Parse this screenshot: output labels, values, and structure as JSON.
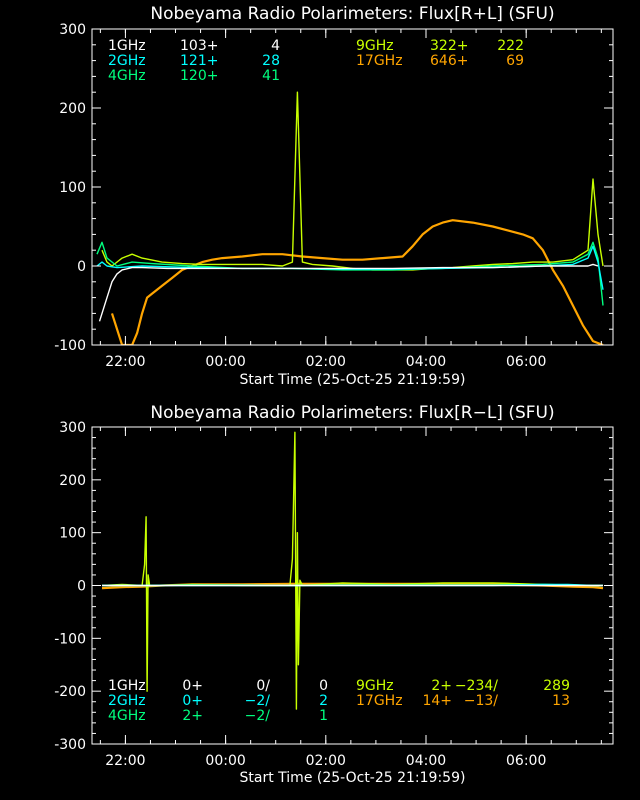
{
  "colors": {
    "1GHz": "#ffffff",
    "2GHz": "#00ffff",
    "4GHz": "#00ff7f",
    "9GHz": "#c8ff00",
    "17GHz": "#ffa500",
    "axis": "#ffffff",
    "background": "#000000"
  },
  "chart_data": [
    {
      "type": "line",
      "title": "Nobeyama Radio Polarimeters: Flux[R+L] (SFU)",
      "xlabel": "Start Time (25-Oct-25 21:19:59)",
      "ylabel": "",
      "x_unit": "hours since 21:19:59",
      "xlim": [
        0,
        10.4
      ],
      "ylim": [
        -100,
        300
      ],
      "x_ticks": [
        {
          "value": 0.667,
          "label": "22:00"
        },
        {
          "value": 2.667,
          "label": "00:00"
        },
        {
          "value": 4.667,
          "label": "02:00"
        },
        {
          "value": 6.667,
          "label": "04:00"
        },
        {
          "value": 8.667,
          "label": "06:00"
        }
      ],
      "y_ticks": [
        -100,
        0,
        100,
        200,
        300
      ],
      "legend": [
        {
          "freq": "1GHz",
          "base": "103+",
          "peak": "4"
        },
        {
          "freq": "2GHz",
          "base": "121+",
          "peak": "28"
        },
        {
          "freq": "4GHz",
          "base": "120+",
          "peak": "41"
        },
        {
          "freq": "9GHz",
          "base": "322+",
          "peak": "222"
        },
        {
          "freq": "17GHz",
          "base": "646+",
          "peak": "69"
        }
      ],
      "series": [
        {
          "name": "17GHz",
          "x": [
            0.4,
            0.6,
            0.8,
            0.9,
            1.0,
            1.1,
            1.2,
            1.4,
            1.6,
            1.8,
            2.0,
            2.2,
            2.4,
            2.6,
            3.0,
            3.4,
            3.8,
            4.2,
            4.6,
            5.0,
            5.4,
            5.8,
            6.2,
            6.4,
            6.6,
            6.8,
            7.0,
            7.2,
            7.6,
            8.0,
            8.3,
            8.6,
            8.8,
            9.0,
            9.2,
            9.4,
            9.6,
            9.8,
            10.0,
            10.2
          ],
          "y": [
            -60,
            -100,
            -100,
            -85,
            -60,
            -40,
            -35,
            -25,
            -15,
            -5,
            0,
            5,
            8,
            10,
            12,
            15,
            15,
            12,
            10,
            8,
            8,
            10,
            12,
            25,
            40,
            50,
            55,
            58,
            55,
            50,
            45,
            40,
            35,
            20,
            -5,
            -25,
            -50,
            -75,
            -95,
            -100
          ]
        },
        {
          "name": "9GHz",
          "x": [
            0.2,
            0.3,
            0.4,
            0.6,
            0.8,
            1.0,
            1.4,
            1.8,
            2.2,
            2.6,
            3.0,
            3.4,
            3.8,
            4.0,
            4.1,
            4.2,
            4.4,
            4.8,
            5.2,
            5.6,
            6.0,
            6.4,
            6.8,
            7.2,
            7.6,
            8.0,
            8.4,
            8.8,
            9.2,
            9.6,
            9.9,
            10.0,
            10.1,
            10.2
          ],
          "y": [
            20,
            5,
            0,
            10,
            15,
            10,
            5,
            3,
            2,
            2,
            2,
            2,
            0,
            5,
            220,
            5,
            2,
            0,
            -3,
            -5,
            -5,
            -5,
            -3,
            -2,
            0,
            2,
            3,
            5,
            5,
            8,
            20,
            110,
            40,
            0
          ]
        },
        {
          "name": "4GHz",
          "x": [
            0.1,
            0.2,
            0.3,
            0.5,
            0.8,
            1.2,
            2.0,
            3.0,
            4.0,
            5.0,
            6.0,
            7.0,
            8.0,
            9.0,
            9.6,
            9.9,
            10.0,
            10.1,
            10.2
          ],
          "y": [
            15,
            30,
            10,
            0,
            5,
            3,
            0,
            -3,
            -3,
            -5,
            -5,
            -3,
            0,
            2,
            5,
            15,
            30,
            10,
            -50
          ]
        },
        {
          "name": "2GHz",
          "x": [
            0.1,
            0.2,
            0.3,
            0.5,
            1.0,
            2.0,
            3.0,
            4.0,
            5.0,
            6.0,
            7.0,
            8.0,
            9.0,
            9.6,
            9.9,
            10.0,
            10.1,
            10.2
          ],
          "y": [
            0,
            5,
            0,
            -2,
            0,
            -2,
            -3,
            -3,
            -4,
            -4,
            -3,
            -2,
            0,
            2,
            10,
            25,
            5,
            -30
          ]
        },
        {
          "name": "1GHz",
          "x": [
            0.15,
            0.2,
            0.3,
            0.4,
            0.5,
            0.6,
            0.8,
            1.0,
            1.5,
            2.0,
            3.0,
            4.0,
            5.0,
            6.0,
            7.0,
            8.0,
            9.0,
            9.6,
            9.9,
            10.0,
            10.1
          ],
          "y": [
            -70,
            -60,
            -40,
            -20,
            -10,
            -5,
            -2,
            -2,
            -3,
            -3,
            -3,
            -3,
            -3,
            -3,
            -2,
            -2,
            0,
            0,
            0,
            2,
            0
          ]
        }
      ]
    },
    {
      "type": "line",
      "title": "Nobeyama Radio Polarimeters: Flux[R−L] (SFU)",
      "xlabel": "Start Time (25-Oct-25 21:19:59)",
      "ylabel": "",
      "x_unit": "hours since 21:19:59",
      "xlim": [
        0,
        10.4
      ],
      "ylim": [
        -300,
        300
      ],
      "x_ticks": [
        {
          "value": 0.667,
          "label": "22:00"
        },
        {
          "value": 2.667,
          "label": "00:00"
        },
        {
          "value": 4.667,
          "label": "02:00"
        },
        {
          "value": 6.667,
          "label": "04:00"
        },
        {
          "value": 8.667,
          "label": "06:00"
        }
      ],
      "y_ticks": [
        -300,
        -200,
        -100,
        0,
        100,
        200,
        300
      ],
      "legend": [
        {
          "freq": "1GHz",
          "base": "0+",
          "mid": "0/",
          "peak": "0"
        },
        {
          "freq": "2GHz",
          "base": "0+",
          "mid": "−2/",
          "peak": "2"
        },
        {
          "freq": "4GHz",
          "base": "2+",
          "mid": "−2/",
          "peak": "1"
        },
        {
          "freq": "9GHz",
          "base": "2+",
          "mid": "−234/",
          "peak": "289"
        },
        {
          "freq": "17GHz",
          "base": "14+",
          "mid": "−13/",
          "peak": "13"
        }
      ],
      "series": [
        {
          "name": "17GHz",
          "x": [
            0.2,
            0.6,
            1.0,
            1.4,
            2.0,
            3.0,
            4.0,
            5.0,
            6.0,
            7.0,
            8.0,
            9.0,
            9.6,
            10.0,
            10.2
          ],
          "y": [
            -5,
            -3,
            -2,
            0,
            2,
            2,
            3,
            3,
            3,
            3,
            2,
            0,
            -2,
            -3,
            -5
          ]
        },
        {
          "name": "9GHz",
          "x": [
            0.2,
            0.6,
            1.0,
            1.05,
            1.08,
            1.1,
            1.12,
            1.15,
            1.4,
            2.0,
            3.0,
            3.95,
            4.0,
            4.05,
            4.08,
            4.1,
            4.12,
            4.15,
            4.2,
            5.0,
            6.0,
            7.0,
            8.0,
            9.0,
            10.0,
            10.2
          ],
          "y": [
            0,
            2,
            0,
            40,
            130,
            -200,
            20,
            0,
            0,
            2,
            0,
            0,
            50,
            290,
            -234,
            100,
            -150,
            10,
            0,
            5,
            2,
            5,
            5,
            2,
            0,
            0
          ]
        },
        {
          "name": "4GHz",
          "x": [
            0.2,
            1.0,
            2.0,
            3.0,
            4.0,
            5.0,
            6.0,
            7.0,
            8.0,
            9.0,
            10.0,
            10.2
          ],
          "y": [
            0,
            0,
            1,
            1,
            0,
            1,
            1,
            1,
            1,
            2,
            0,
            0
          ]
        },
        {
          "name": "2GHz",
          "x": [
            0.2,
            1.0,
            2.0,
            3.0,
            4.0,
            5.0,
            6.0,
            7.0,
            8.0,
            9.0,
            9.5,
            10.0,
            10.2
          ],
          "y": [
            0,
            0,
            0,
            0,
            0,
            0,
            0,
            0,
            0,
            2,
            2,
            0,
            0
          ]
        },
        {
          "name": "1GHz",
          "x": [
            0.2,
            2.0,
            4.0,
            6.0,
            8.0,
            10.0,
            10.2
          ],
          "y": [
            0,
            0,
            0,
            0,
            0,
            0,
            0
          ]
        }
      ]
    }
  ]
}
